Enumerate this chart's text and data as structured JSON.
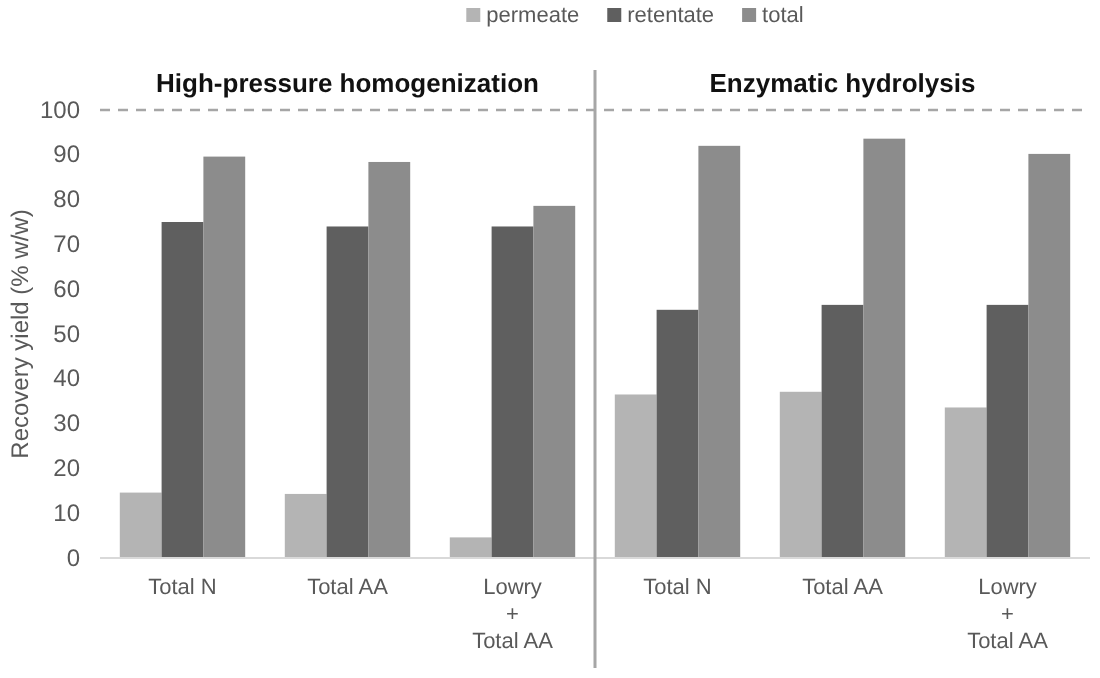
{
  "chart_data": {
    "type": "bar",
    "ylabel": "Recovery yield (% w/w)",
    "categories": [
      "Total N",
      "Total AA",
      "Lowry\n+\nTotal AA",
      "Total N",
      "Total AA",
      "Lowry\n+\nTotal AA"
    ],
    "series": [
      {
        "name": "permeate",
        "color": "#b4b4b4",
        "values": [
          14.6,
          14.3,
          4.6,
          36.5,
          37.1,
          33.6
        ]
      },
      {
        "name": "retentate",
        "color": "#5f5f5f",
        "values": [
          75.0,
          74.0,
          74.0,
          55.4,
          56.5,
          56.5
        ]
      },
      {
        "name": "total",
        "color": "#8c8c8c",
        "values": [
          89.6,
          88.4,
          78.6,
          92.0,
          93.6,
          90.2
        ]
      }
    ],
    "ylim": [
      0,
      100
    ],
    "yticks": [
      0,
      10,
      20,
      30,
      40,
      50,
      60,
      70,
      80,
      90,
      100
    ],
    "ref_lines": [
      {
        "axis": "y",
        "value": 100,
        "color": "#a6a6a6",
        "line_style": "dashed"
      }
    ],
    "annotations": [
      "High-pressure homogenization",
      "Enzymatic hydrolysis"
    ],
    "legend": "top",
    "grid": false
  }
}
